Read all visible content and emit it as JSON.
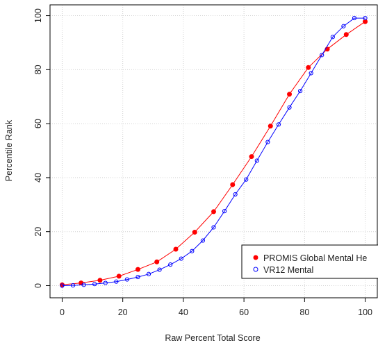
{
  "chart_data": {
    "type": "line",
    "xlabel": "Raw Percent Total Score",
    "ylabel": "Percentile Rank",
    "xlim": [
      -4,
      104
    ],
    "ylim": [
      -4.5,
      104
    ],
    "xticks": [
      "0",
      "20",
      "40",
      "60",
      "80",
      "100"
    ],
    "yticks": [
      "0",
      "20",
      "40",
      "60",
      "80",
      "100"
    ],
    "grid": true,
    "legend_position": "bottom-right",
    "series": [
      {
        "name": "PROMIS Global Mental He",
        "color": "#ff0000",
        "marker": "filled-circle",
        "x": [
          0,
          6.25,
          12.5,
          18.75,
          25,
          31.25,
          37.5,
          43.75,
          50,
          56.25,
          62.5,
          68.75,
          75,
          81.25,
          87.5,
          93.75,
          100
        ],
        "values": [
          0.3,
          1.0,
          2.0,
          3.5,
          6.0,
          8.8,
          13.5,
          19.8,
          27.4,
          37.4,
          47.8,
          59.1,
          70.9,
          80.8,
          87.6,
          93.0,
          97.8
        ]
      },
      {
        "name": "VR12 Mental",
        "color": "#0000ff",
        "marker": "open-circle",
        "x": [
          0,
          3.57,
          7.14,
          10.71,
          14.29,
          17.86,
          21.43,
          25,
          28.57,
          32.14,
          35.71,
          39.29,
          42.86,
          46.43,
          50,
          53.57,
          57.14,
          60.71,
          64.29,
          67.86,
          71.43,
          75,
          78.57,
          82.14,
          85.71,
          89.29,
          92.86,
          96.43,
          100
        ],
        "values": [
          0.0,
          0.1,
          0.3,
          0.6,
          1.0,
          1.5,
          2.3,
          3.2,
          4.3,
          5.9,
          7.8,
          10.0,
          12.8,
          16.7,
          21.6,
          27.6,
          33.8,
          39.3,
          46.3,
          53.2,
          59.7,
          66.0,
          72.1,
          78.7,
          85.4,
          92.1,
          96.1,
          99.1,
          99.1
        ]
      }
    ]
  }
}
